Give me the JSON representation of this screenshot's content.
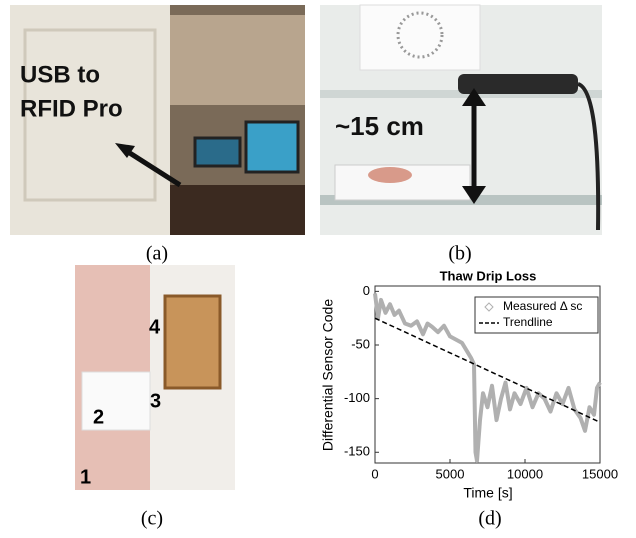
{
  "panels": {
    "a": {
      "caption": "(a)",
      "annotation": [
        "USB to",
        "RFID Pro"
      ]
    },
    "b": {
      "caption": "(b)",
      "annotation": "~15 cm"
    },
    "c": {
      "caption": "(c)",
      "labels": [
        "1",
        "2",
        "3",
        "4"
      ]
    },
    "d": {
      "caption": "(d)"
    }
  },
  "chart_data": {
    "type": "line",
    "title": "Thaw Drip Loss",
    "x_label": "Time [s]",
    "y_label": "Differential Sensor Code",
    "x": [
      0,
      200,
      400,
      700,
      1000,
      1300,
      1600,
      2000,
      2400,
      2800,
      3200,
      3500,
      3800,
      4200,
      4600,
      5000,
      5400,
      5800,
      6100,
      6400,
      6600,
      6700,
      6800,
      7000,
      7200,
      7500,
      7800,
      8100,
      8400,
      8700,
      9000,
      9300,
      9700,
      10100,
      10500,
      10900,
      11300,
      11700,
      12100,
      12500,
      12900,
      13300,
      13700,
      14000,
      14300,
      14600,
      14800,
      15000
    ],
    "series": [
      {
        "name": "Measured Δ sc",
        "color": "#b0b0b0",
        "values": [
          -2,
          -25,
          -8,
          -20,
          -12,
          -22,
          -18,
          -30,
          -32,
          -28,
          -40,
          -30,
          -33,
          -38,
          -32,
          -42,
          -45,
          -48,
          -55,
          -62,
          -68,
          -150,
          -158,
          -120,
          -95,
          -108,
          -88,
          -120,
          -100,
          -85,
          -110,
          -95,
          -105,
          -90,
          -108,
          -95,
          -100,
          -112,
          -95,
          -105,
          -90,
          -110,
          -118,
          -130,
          -108,
          -115,
          -90,
          -85
        ]
      },
      {
        "name": "Trendline",
        "color": "#000000",
        "dashed": true,
        "x": [
          0,
          15000
        ],
        "values": [
          -25,
          -122
        ]
      }
    ],
    "xlim": [
      0,
      15000
    ],
    "xticks": [
      0,
      5000,
      10000,
      15000
    ],
    "ylim": [
      -160,
      5
    ],
    "yticks": [
      0,
      -50,
      -100,
      -150
    ],
    "legend": "upper right"
  }
}
